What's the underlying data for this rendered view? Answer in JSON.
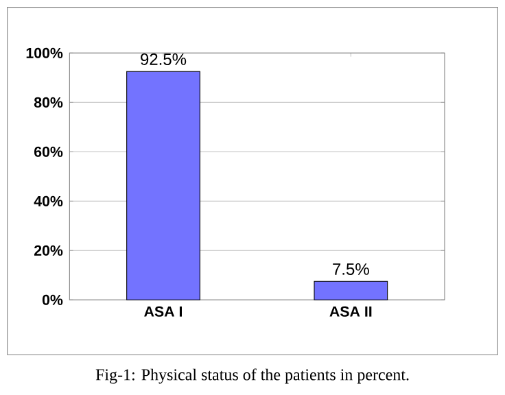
{
  "chart_data": {
    "type": "bar",
    "categories": [
      "ASA I",
      "ASA II"
    ],
    "values": [
      92.5,
      7.5
    ],
    "value_labels": [
      "92.5%",
      "7.5%"
    ],
    "color": "#7373ff",
    "ylim": [
      0,
      100
    ],
    "yticks": [
      {
        "value": 0,
        "label": "0%"
      },
      {
        "value": 20,
        "label": "20%"
      },
      {
        "value": 40,
        "label": "40%"
      },
      {
        "value": 60,
        "label": "60%"
      },
      {
        "value": 80,
        "label": "80%"
      },
      {
        "value": 100,
        "label": "100%"
      }
    ],
    "grid": "y",
    "annotations": [
      "Fig-1: Physical status of the patients in percent."
    ]
  }
}
